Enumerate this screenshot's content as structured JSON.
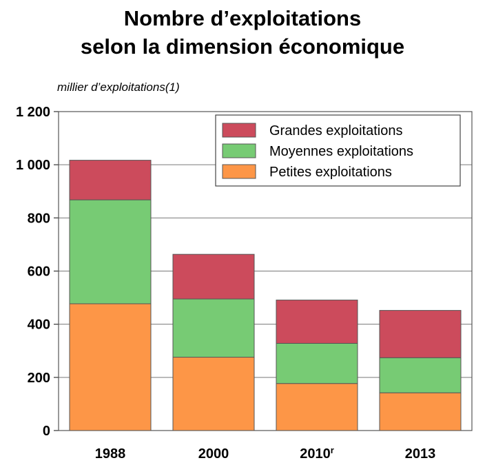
{
  "title_line1": "Nombre d’exploitations",
  "title_line2": "selon la dimension économique",
  "unit_label": "millier d’exploitations(1)",
  "chart_data": {
    "type": "bar",
    "stacked": true,
    "categories": [
      "1988",
      "2000",
      "2010r",
      "2013"
    ],
    "category_labels": [
      {
        "base": "1988",
        "sup": ""
      },
      {
        "base": "2000",
        "sup": ""
      },
      {
        "base": "2010",
        "sup": "r"
      },
      {
        "base": "2013",
        "sup": ""
      }
    ],
    "series": [
      {
        "name": "Petites exploitations",
        "color": "#fd9647",
        "values": [
          477,
          276,
          177,
          142
        ]
      },
      {
        "name": "Moyennes exploitations",
        "color": "#77cb74",
        "values": [
          391,
          219,
          151,
          132
        ]
      },
      {
        "name": "Grandes exploitations",
        "color": "#cc4b5c",
        "values": [
          149,
          168,
          163,
          178
        ]
      }
    ],
    "ylim": [
      0,
      1200
    ],
    "yticks": [
      0,
      200,
      400,
      600,
      800,
      1000,
      1200
    ],
    "ytick_labels": [
      "0",
      "200",
      "400",
      "600",
      "800",
      "1 000",
      "1 200"
    ],
    "grid": true,
    "legend_position": "top-right",
    "legend_order": [
      "Grandes exploitations",
      "Moyennes exploitations",
      "Petites exploitations"
    ]
  }
}
